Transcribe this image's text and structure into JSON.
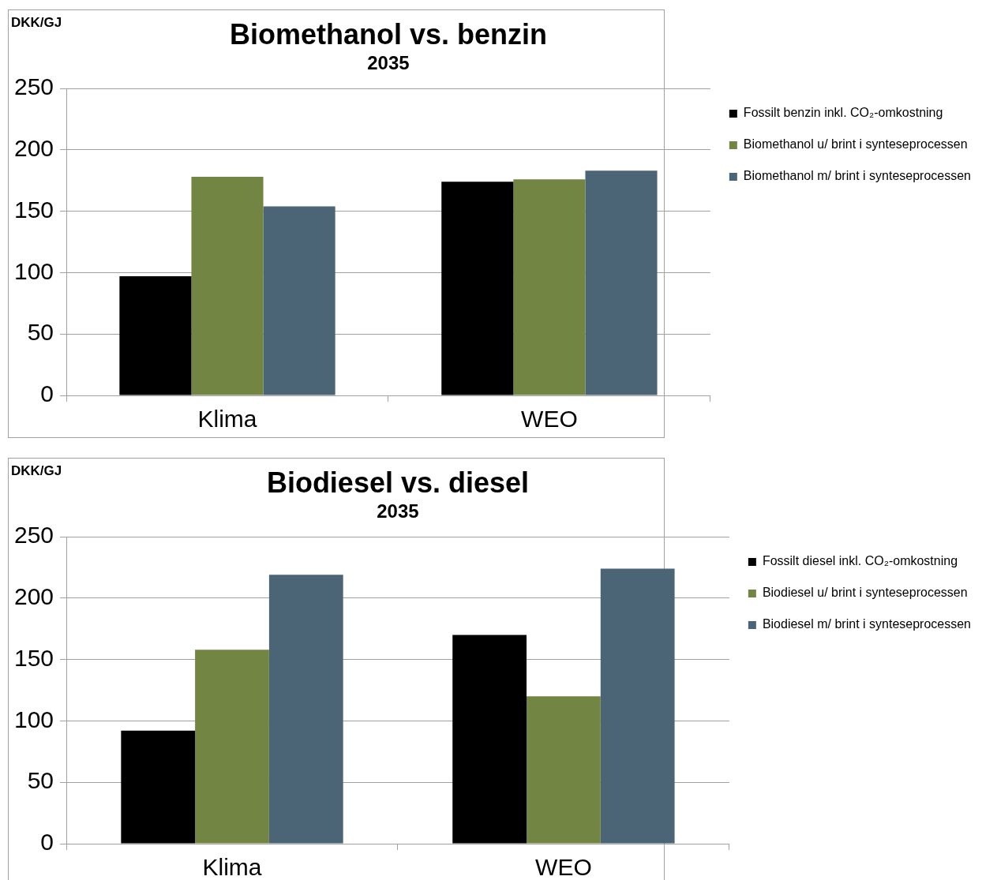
{
  "chart_data": [
    {
      "type": "bar",
      "title": "Biomethanol vs. benzin",
      "subtitle": "2035",
      "ylabel": "DKK/GJ",
      "categories": [
        "Klima",
        "WEO"
      ],
      "series": [
        {
          "name": "Fossilt benzin inkl. CO₂-omkostning",
          "color": "#000000",
          "values": [
            97,
            174
          ]
        },
        {
          "name": "Biomethanol u/ brint i synteseprocessen",
          "color": "#728542",
          "values": [
            178,
            176
          ]
        },
        {
          "name": "Biomethanol m/ brint i synteseprocessen",
          "color": "#4b6577",
          "values": [
            154,
            183
          ]
        }
      ],
      "ylim": [
        0,
        250
      ],
      "yticks": [
        0,
        50,
        100,
        150,
        200,
        250
      ],
      "grid": "y",
      "legend": "top right"
    },
    {
      "type": "bar",
      "title": "Biodiesel vs. diesel",
      "subtitle": "2035",
      "ylabel": "DKK/GJ",
      "categories": [
        "Klima",
        "WEO"
      ],
      "series": [
        {
          "name": "Fossilt diesel inkl. CO₂-omkostning",
          "color": "#000000",
          "values": [
            92,
            170
          ]
        },
        {
          "name": "Biodiesel u/ brint i synteseprocessen",
          "color": "#728542",
          "values": [
            158,
            120
          ]
        },
        {
          "name": "Biodiesel m/ brint i synteseprocessen",
          "color": "#4b6577",
          "values": [
            219,
            224
          ]
        }
      ],
      "ylim": [
        0,
        250
      ],
      "yticks": [
        0,
        50,
        100,
        150,
        200,
        250
      ],
      "grid": "y",
      "legend": "top right"
    }
  ]
}
